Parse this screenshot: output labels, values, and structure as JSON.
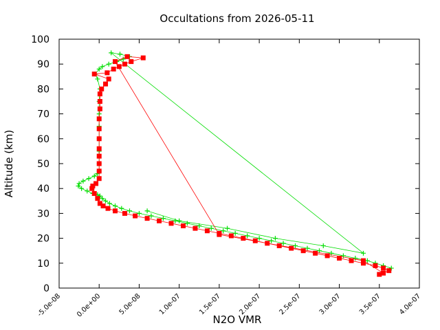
{
  "chart_data": {
    "type": "scatter",
    "title": "Occultations from 2026-05-11",
    "xlabel": "N2O VMR",
    "ylabel": "Altitude (km)",
    "xlim": [
      -5e-08,
      4e-07
    ],
    "ylim": [
      0,
      100
    ],
    "x_ticks": [
      -5e-08,
      0,
      5e-08,
      1e-07,
      1.5e-07,
      2e-07,
      2.5e-07,
      3e-07,
      3.5e-07,
      4e-07
    ],
    "x_tick_labels": [
      "-5.0e-08",
      "0.0e+00",
      "5.0e-08",
      "1.0e-07",
      "1.5e-07",
      "2.0e-07",
      "2.5e-07",
      "3.0e-07",
      "3.5e-07",
      "4.0e-07"
    ],
    "y_ticks": [
      0,
      10,
      20,
      30,
      40,
      50,
      60,
      70,
      80,
      90,
      100
    ],
    "y_tick_labels": [
      "0",
      "10",
      "20",
      "30",
      "40",
      "50",
      "60",
      "70",
      "80",
      "90",
      "100"
    ],
    "grid": false,
    "legend": "none",
    "series": [
      {
        "color": "#00dd00",
        "marker": "plus",
        "points": [
          [
            3.65e-07,
            8
          ],
          [
            3.55e-07,
            9
          ],
          [
            3.45e-07,
            10
          ],
          [
            3.35e-07,
            11
          ],
          [
            3.2e-07,
            12
          ],
          [
            3.05e-07,
            13
          ],
          [
            2.9e-07,
            14
          ],
          [
            2.75e-07,
            15
          ],
          [
            2.6e-07,
            16
          ],
          [
            2.45e-07,
            17
          ],
          [
            2.3e-07,
            18
          ],
          [
            2.15e-07,
            19
          ],
          [
            2e-07,
            20
          ],
          [
            1.85e-07,
            21
          ],
          [
            1.7e-07,
            22
          ],
          [
            1.55e-07,
            23
          ],
          [
            1.4e-07,
            24
          ],
          [
            1.25e-07,
            25
          ],
          [
            1.1e-07,
            26
          ],
          [
            9.5e-08,
            27
          ],
          [
            8e-08,
            28
          ],
          [
            6.5e-08,
            29
          ],
          [
            5e-08,
            30
          ],
          [
            3.8e-08,
            31
          ],
          [
            2.8e-08,
            32
          ],
          [
            2e-08,
            33
          ],
          [
            1.3e-08,
            34
          ],
          [
            8e-09,
            35
          ],
          [
            4e-09,
            36
          ],
          [
            1e-09,
            37
          ],
          [
            -2e-09,
            37.5
          ],
          [
            -8e-09,
            38
          ],
          [
            -1.5e-08,
            39
          ],
          [
            -2.2e-08,
            40
          ],
          [
            -2.6e-08,
            41
          ],
          [
            -2.5e-08,
            42
          ],
          [
            -2e-08,
            43
          ],
          [
            -1.3e-08,
            44
          ],
          [
            -6e-09,
            45
          ],
          [
            -2e-09,
            46
          ],
          [
            0,
            47
          ],
          [
            0,
            50
          ],
          [
            0,
            55
          ],
          [
            0,
            60
          ],
          [
            0,
            65
          ],
          [
            0,
            70
          ],
          [
            0,
            75
          ],
          [
            1e-09,
            80
          ],
          [
            -2e-09,
            84
          ],
          [
            -5e-09,
            86
          ],
          [
            0,
            88
          ],
          [
            4e-09,
            89
          ],
          [
            1.2e-08,
            90
          ],
          [
            2.2e-08,
            91
          ],
          [
            3e-08,
            92
          ],
          [
            3.8e-08,
            93
          ],
          [
            2.6e-08,
            94
          ],
          [
            1.5e-08,
            94.5
          ],
          [
            3.3e-07,
            14
          ],
          [
            2.8e-07,
            17
          ],
          [
            2.2e-07,
            20
          ],
          [
            1.6e-07,
            24
          ],
          [
            1e-07,
            27
          ],
          [
            6e-08,
            31
          ]
        ]
      },
      {
        "color": "#ff0000",
        "marker": "square",
        "points": [
          [
            3.5e-07,
            5.5
          ],
          [
            3.62e-07,
            7
          ],
          [
            3.55e-07,
            8
          ],
          [
            3.45e-07,
            9
          ],
          [
            3.3e-07,
            10
          ],
          [
            3.15e-07,
            11
          ],
          [
            3e-07,
            12
          ],
          [
            2.85e-07,
            13
          ],
          [
            2.7e-07,
            14
          ],
          [
            2.55e-07,
            15
          ],
          [
            2.4e-07,
            16
          ],
          [
            2.25e-07,
            17
          ],
          [
            2.1e-07,
            18
          ],
          [
            1.95e-07,
            19
          ],
          [
            1.8e-07,
            20
          ],
          [
            1.65e-07,
            21
          ],
          [
            1.5e-07,
            22
          ],
          [
            1.35e-07,
            23
          ],
          [
            1.2e-07,
            24
          ],
          [
            1.05e-07,
            25
          ],
          [
            9e-08,
            26
          ],
          [
            7.5e-08,
            27
          ],
          [
            6e-08,
            28
          ],
          [
            4.5e-08,
            29
          ],
          [
            3.2e-08,
            30
          ],
          [
            2e-08,
            31
          ],
          [
            1.1e-08,
            32
          ],
          [
            5e-09,
            33
          ],
          [
            1e-09,
            34
          ],
          [
            -2e-09,
            36
          ],
          [
            -6e-09,
            38
          ],
          [
            -9e-09,
            40
          ],
          [
            -8e-09,
            41
          ],
          [
            -4e-09,
            42
          ],
          [
            0,
            44
          ],
          [
            0,
            47
          ],
          [
            0,
            50
          ],
          [
            0,
            53
          ],
          [
            0,
            56
          ],
          [
            0,
            60
          ],
          [
            0,
            64
          ],
          [
            0,
            68
          ],
          [
            1e-09,
            72
          ],
          [
            1e-09,
            75
          ],
          [
            1e-09,
            78
          ],
          [
            3e-09,
            80
          ],
          [
            8e-09,
            82
          ],
          [
            1.2e-08,
            84
          ],
          [
            -6e-09,
            86
          ],
          [
            1e-08,
            86.5
          ],
          [
            1.8e-08,
            88
          ],
          [
            2.5e-08,
            89
          ],
          [
            3.2e-08,
            90
          ],
          [
            4e-08,
            91
          ],
          [
            5.5e-08,
            92.5
          ],
          [
            3.5e-08,
            93
          ],
          [
            2e-08,
            91
          ],
          [
            1.5e-07,
            21.5
          ],
          [
            3.3e-07,
            11
          ],
          [
            3.55e-07,
            6
          ]
        ]
      }
    ]
  }
}
